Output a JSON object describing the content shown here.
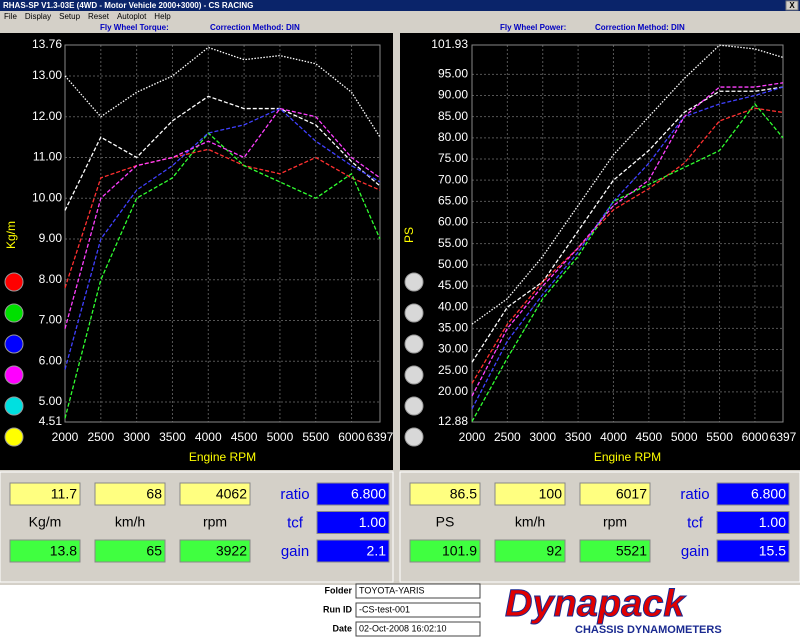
{
  "window": {
    "title": "RHAS-SP V1.3-03E  (4WD - Motor Vehicle 2000+3000) - CS RACING",
    "close": "X"
  },
  "menu": [
    "File",
    "Display",
    "Setup",
    "Reset",
    "Autoplot",
    "Help"
  ],
  "chart_data": [
    {
      "type": "line",
      "title": "Fly Wheel Torque:",
      "subtitle": "Correction Method: DIN",
      "x_label": "Engine RPM",
      "y_label": "Kg/m",
      "x": [
        2000,
        2500,
        3000,
        3500,
        4000,
        4500,
        5000,
        5500,
        6000,
        6397
      ],
      "xlim": [
        2000,
        6397
      ],
      "xticks": [
        2000,
        2500,
        3000,
        3500,
        4000,
        4500,
        5000,
        5500,
        6000,
        6397
      ],
      "ylim": [
        4.51,
        13.76
      ],
      "yticks": [
        4.51,
        {
          "value": 5,
          "label": "5.00"
        },
        {
          "value": 6,
          "label": "6.00"
        },
        {
          "value": 7,
          "label": "7.00"
        },
        {
          "value": 8,
          "label": "8.00"
        },
        {
          "value": 9,
          "label": "9.00"
        },
        {
          "value": 10,
          "label": "10.00"
        },
        {
          "value": 11,
          "label": "11.00"
        },
        {
          "value": 12,
          "label": "12.00"
        },
        {
          "value": 13,
          "label": "13.00"
        },
        13.76
      ],
      "grid": true,
      "series": [
        {
          "color": "#ffffff",
          "values": [
            13.0,
            12.0,
            12.6,
            13.0,
            13.7,
            13.4,
            13.5,
            13.3,
            12.6,
            11.5
          ]
        },
        {
          "color": "#ffffff",
          "values": [
            9.7,
            11.5,
            11.0,
            11.9,
            12.5,
            12.2,
            12.2,
            11.8,
            10.9,
            10.3
          ]
        },
        {
          "color": "#ff3030",
          "values": [
            7.8,
            10.5,
            10.8,
            11.0,
            11.2,
            10.8,
            10.6,
            11.0,
            10.5,
            10.2
          ]
        },
        {
          "color": "#30ff30",
          "values": [
            4.6,
            8.0,
            10.0,
            10.5,
            11.6,
            10.8,
            10.4,
            10.0,
            10.6,
            9.0
          ]
        },
        {
          "color": "#4040ff",
          "values": [
            5.8,
            9.0,
            10.2,
            10.8,
            11.6,
            11.8,
            12.2,
            11.4,
            10.8,
            10.4
          ]
        },
        {
          "color": "#ff40ff",
          "values": [
            6.8,
            10.0,
            10.8,
            11.0,
            11.4,
            11.0,
            12.2,
            12.0,
            11.0,
            10.5
          ]
        }
      ]
    },
    {
      "type": "line",
      "title": "Fly Wheel Power:",
      "subtitle": "Correction Method: DIN",
      "x_label": "Engine RPM",
      "y_label": "PS",
      "x": [
        2000,
        2500,
        3000,
        3500,
        4000,
        4500,
        5000,
        5500,
        6000,
        6397
      ],
      "xlim": [
        2000,
        6397
      ],
      "xticks": [
        2000,
        2500,
        3000,
        3500,
        4000,
        4500,
        5000,
        5500,
        6000,
        6397
      ],
      "ylim": [
        12.88,
        101.93
      ],
      "yticks": [
        12.88,
        {
          "value": 20,
          "label": "20.00"
        },
        {
          "value": 25,
          "label": "25.00"
        },
        {
          "value": 30,
          "label": "30.00"
        },
        {
          "value": 35,
          "label": "35.00"
        },
        {
          "value": 40,
          "label": "40.00"
        },
        {
          "value": 45,
          "label": "45.00"
        },
        {
          "value": 50,
          "label": "50.00"
        },
        {
          "value": 55,
          "label": "55.00"
        },
        {
          "value": 60,
          "label": "60.00"
        },
        {
          "value": 65,
          "label": "65.00"
        },
        {
          "value": 70,
          "label": "70.00"
        },
        {
          "value": 75,
          "label": "75.00"
        },
        {
          "value": 80,
          "label": "80.00"
        },
        {
          "value": 85,
          "label": "85.00"
        },
        {
          "value": 90,
          "label": "90.00"
        },
        {
          "value": 95,
          "label": "95.00"
        },
        101.93
      ],
      "grid": true,
      "series": [
        {
          "color": "#ffffff",
          "values": [
            36,
            42,
            52,
            64,
            76,
            85,
            94,
            101.9,
            101,
            99
          ]
        },
        {
          "color": "#ffffff",
          "values": [
            27,
            40,
            46,
            58,
            70,
            77,
            86,
            91,
            91,
            92
          ]
        },
        {
          "color": "#ff3030",
          "values": [
            22,
            36,
            46,
            54,
            63,
            68,
            74,
            84,
            87,
            86
          ]
        },
        {
          "color": "#30ff30",
          "values": [
            13,
            28,
            42,
            52,
            65,
            69,
            73,
            77,
            88,
            80
          ]
        },
        {
          "color": "#4040ff",
          "values": [
            16,
            32,
            43,
            53,
            65,
            74,
            85,
            88,
            90,
            92
          ]
        },
        {
          "color": "#ff40ff",
          "values": [
            19,
            35,
            45,
            54,
            64,
            70,
            85,
            92,
            92,
            93
          ]
        }
      ]
    }
  ],
  "readouts": [
    {
      "top": [
        "11.7",
        "68",
        "4062"
      ],
      "units": [
        "Kg/m",
        "km/h",
        "rpm"
      ],
      "bottom": [
        "13.8",
        "65",
        "3922"
      ],
      "side_labels": [
        "ratio",
        "tcf",
        "gain"
      ],
      "side_values": [
        "6.800",
        "1.00",
        "2.1"
      ]
    },
    {
      "top": [
        "86.5",
        "100",
        "6017"
      ],
      "units": [
        "PS",
        "km/h",
        "rpm"
      ],
      "bottom": [
        "101.9",
        "92",
        "5521"
      ],
      "side_labels": [
        "ratio",
        "tcf",
        "gain"
      ],
      "side_values": [
        "6.800",
        "1.00",
        "15.5"
      ]
    }
  ],
  "footer": {
    "labels": [
      "Folder",
      "Run ID",
      "Date"
    ],
    "values": [
      "TOYOTA-YARIS",
      "-CS-test-001",
      "02-Oct-2008  16:02:10"
    ],
    "logo": "Dynapack",
    "logo_sub": "CHASSIS DYNAMOMETERS"
  }
}
